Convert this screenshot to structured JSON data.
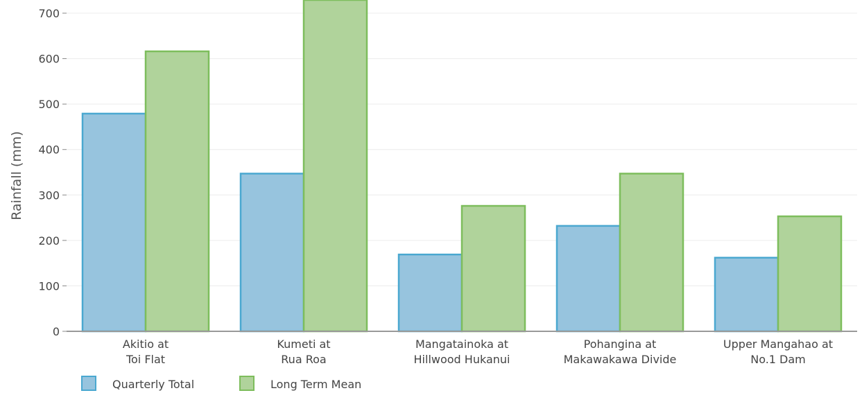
{
  "chart_data": {
    "type": "bar",
    "title": "",
    "xlabel": "",
    "ylabel": "Rainfall (mm)",
    "ylim": [
      0,
      730
    ],
    "yticks": [
      0,
      100,
      200,
      300,
      400,
      500,
      600,
      700
    ],
    "grid": true,
    "legend_position": "bottom-left",
    "categories": [
      [
        "Akitio at",
        "Toi Flat"
      ],
      [
        "Kumeti at",
        "Rua Roa"
      ],
      [
        "Mangatainoka at",
        "Hillwood Hukanui"
      ],
      [
        "Pohangina at",
        "Makawakawa Divide"
      ],
      [
        "Upper Mangahao at",
        "No.1 Dam"
      ]
    ],
    "series": [
      {
        "name": "Quarterly Total",
        "values": [
          479,
          347,
          169,
          232,
          162
        ],
        "fill": "#97c4de",
        "stroke": "#4aa8d0"
      },
      {
        "name": "Long Term Mean",
        "values": [
          616,
          736,
          276,
          347,
          253
        ],
        "fill": "#b0d39b",
        "stroke": "#7dbd5c"
      }
    ]
  }
}
